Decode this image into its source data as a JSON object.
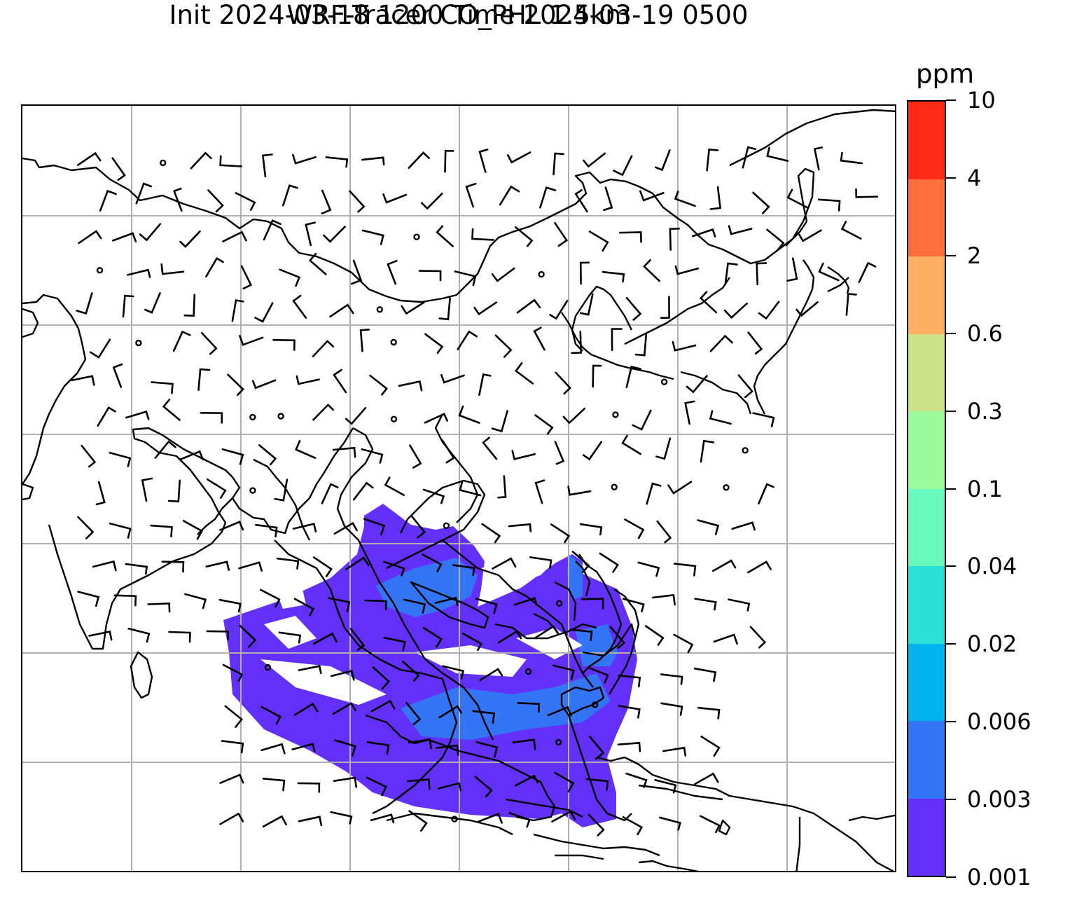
{
  "title": {
    "line1": "WRF-Tracer CO_PHL 1.5km",
    "line2": "Init 2024-03-18 1200 Time 2024-03-19 0500"
  },
  "colorbar": {
    "unit": "ppm",
    "levels": [
      "0.001",
      "0.003",
      "0.006",
      "0.02",
      "0.04",
      "0.1",
      "0.3",
      "0.6",
      "2",
      "4",
      "10"
    ],
    "colors": [
      "#6330fa",
      "#3375f5",
      "#02b3ee",
      "#2de0d5",
      "#69f9bf",
      "#9bfa9b",
      "#cde186",
      "#fdb063",
      "#ff6e3c",
      "#fe2a17"
    ]
  },
  "map": {
    "gridlines": true,
    "coastline_color": "#000000",
    "grid_color": "#b0b0b0"
  }
}
